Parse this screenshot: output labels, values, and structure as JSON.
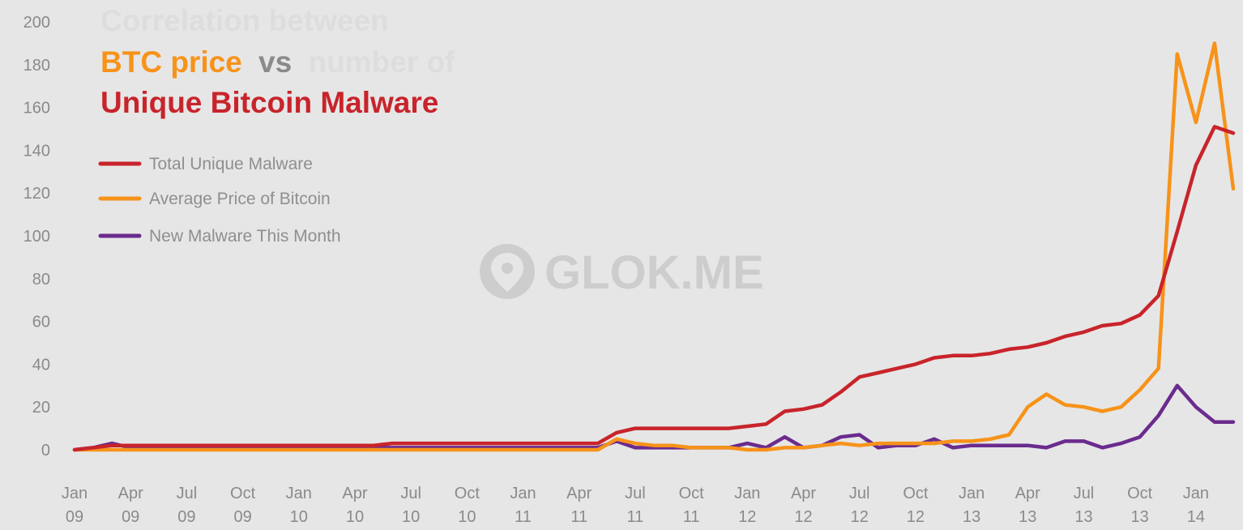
{
  "chart_data": {
    "type": "line",
    "title_parts": [
      {
        "text": "Correlation between",
        "color": "#dddddd"
      },
      {
        "text": "BTC price",
        "color": "#f7931a"
      },
      {
        "text": "vs",
        "color": "#8a8a8a"
      },
      {
        "text": "number of",
        "color": "#dddddd"
      },
      {
        "text": "Unique Bitcoin Malware",
        "color": "#c8242b"
      }
    ],
    "yticks": [
      0,
      20,
      40,
      60,
      80,
      100,
      120,
      140,
      160,
      180,
      200
    ],
    "ylim": [
      0,
      200
    ],
    "xlim": [
      0,
      62
    ],
    "grid": false,
    "legend_position": "top-left",
    "xticks": [
      {
        "i": 0,
        "top": "Jan",
        "bottom": "09"
      },
      {
        "i": 3,
        "top": "Apr",
        "bottom": "09"
      },
      {
        "i": 6,
        "top": "Jul",
        "bottom": "09"
      },
      {
        "i": 9,
        "top": "Oct",
        "bottom": "09"
      },
      {
        "i": 12,
        "top": "Jan",
        "bottom": "10"
      },
      {
        "i": 15,
        "top": "Apr",
        "bottom": "10"
      },
      {
        "i": 18,
        "top": "Jul",
        "bottom": "10"
      },
      {
        "i": 21,
        "top": "Oct",
        "bottom": "10"
      },
      {
        "i": 24,
        "top": "Jan",
        "bottom": "11"
      },
      {
        "i": 27,
        "top": "Apr",
        "bottom": "11"
      },
      {
        "i": 30,
        "top": "Jul",
        "bottom": "11"
      },
      {
        "i": 33,
        "top": "Oct",
        "bottom": "11"
      },
      {
        "i": 36,
        "top": "Jan",
        "bottom": "12"
      },
      {
        "i": 39,
        "top": "Apr",
        "bottom": "12"
      },
      {
        "i": 42,
        "top": "Jul",
        "bottom": "12"
      },
      {
        "i": 45,
        "top": "Oct",
        "bottom": "12"
      },
      {
        "i": 48,
        "top": "Jan",
        "bottom": "13"
      },
      {
        "i": 51,
        "top": "Apr",
        "bottom": "13"
      },
      {
        "i": 54,
        "top": "Jul",
        "bottom": "13"
      },
      {
        "i": 57,
        "top": "Oct",
        "bottom": "13"
      },
      {
        "i": 60,
        "top": "Jan",
        "bottom": "14"
      }
    ],
    "series": [
      {
        "name": "Total Unique Malware",
        "color": "#c8242b",
        "values": [
          0,
          1,
          2,
          2,
          2,
          2,
          2,
          2,
          2,
          2,
          2,
          2,
          2,
          2,
          2,
          2,
          2,
          3,
          3,
          3,
          3,
          3,
          3,
          3,
          3,
          3,
          3,
          3,
          3,
          8,
          10,
          10,
          10,
          10,
          10,
          10,
          11,
          12,
          18,
          19,
          21,
          27,
          34,
          36,
          38,
          40,
          43,
          44,
          44,
          45,
          47,
          48,
          50,
          53,
          55,
          58,
          59,
          63,
          72,
          102,
          133,
          151,
          148
        ]
      },
      {
        "name": "Average Price of Bitcoin",
        "color": "#f7931a",
        "values": [
          0,
          0,
          0,
          0,
          0,
          0,
          0,
          0,
          0,
          0,
          0,
          0,
          0,
          0,
          0,
          0,
          0,
          0,
          0,
          0,
          0,
          0,
          0,
          0,
          0,
          0,
          0,
          0,
          0,
          5,
          3,
          2,
          2,
          1,
          1,
          1,
          0,
          0,
          1,
          1,
          2,
          3,
          2,
          3,
          3,
          3,
          3,
          4,
          4,
          5,
          7,
          20,
          26,
          21,
          20,
          18,
          20,
          28,
          38,
          185,
          153,
          190,
          122
        ]
      },
      {
        "name": "New Malware This Month",
        "color": "#6b2b8e",
        "values": [
          0,
          1,
          3,
          1,
          1,
          1,
          1,
          1,
          1,
          1,
          1,
          1,
          1,
          1,
          1,
          1,
          1,
          1,
          1,
          1,
          1,
          1,
          1,
          1,
          1,
          1,
          1,
          1,
          1,
          4,
          1,
          1,
          1,
          1,
          1,
          1,
          3,
          1,
          6,
          1,
          2,
          6,
          7,
          1,
          2,
          2,
          5,
          1,
          2,
          2,
          2,
          2,
          1,
          4,
          4,
          1,
          3,
          6,
          16,
          30,
          20,
          13,
          13
        ]
      }
    ]
  },
  "watermark": {
    "text": "GLOK.ME",
    "icon": "location-pin-icon"
  }
}
